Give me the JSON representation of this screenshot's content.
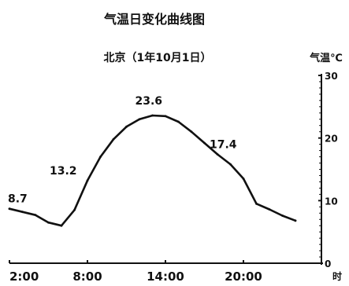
{
  "chart_data": {
    "type": "line",
    "title": "气温日变化曲线图",
    "subtitle": "北京（1年10月1日）",
    "ylabel": "气温℃",
    "xlabel": "时",
    "ylim": [
      0,
      30
    ],
    "xlim": [
      2,
      26
    ],
    "x_ticks": [
      {
        "value": 2,
        "label": "2:00"
      },
      {
        "value": 8,
        "label": "8:00"
      },
      {
        "value": 14,
        "label": "14:00"
      },
      {
        "value": 20,
        "label": "20:00"
      }
    ],
    "y_ticks": [
      {
        "value": 0,
        "label": "0"
      },
      {
        "value": 10,
        "label": "10"
      },
      {
        "value": 20,
        "label": "20"
      },
      {
        "value": 30,
        "label": "30"
      }
    ],
    "series": [
      {
        "x": [
          2,
          3,
          4,
          5,
          6,
          7,
          8,
          9,
          10,
          11,
          12,
          13,
          14,
          15,
          16,
          17,
          18,
          19,
          20,
          21,
          22,
          23,
          24
        ],
        "values": [
          8.7,
          8.2,
          7.7,
          6.5,
          6.0,
          8.5,
          13.2,
          17.0,
          19.8,
          21.8,
          23.0,
          23.6,
          23.5,
          22.6,
          21.0,
          19.2,
          17.4,
          15.8,
          13.5,
          9.5,
          8.6,
          7.6,
          6.8
        ]
      }
    ],
    "annotations": [
      {
        "x": 2,
        "y": 8.7,
        "text": "8.7"
      },
      {
        "x": 8,
        "y": 13.2,
        "text": "13.2"
      },
      {
        "x": 13,
        "y": 23.6,
        "text": "23.6"
      },
      {
        "x": 18,
        "y": 17.4,
        "text": "17.4"
      }
    ],
    "grid": false,
    "legend": "none"
  }
}
